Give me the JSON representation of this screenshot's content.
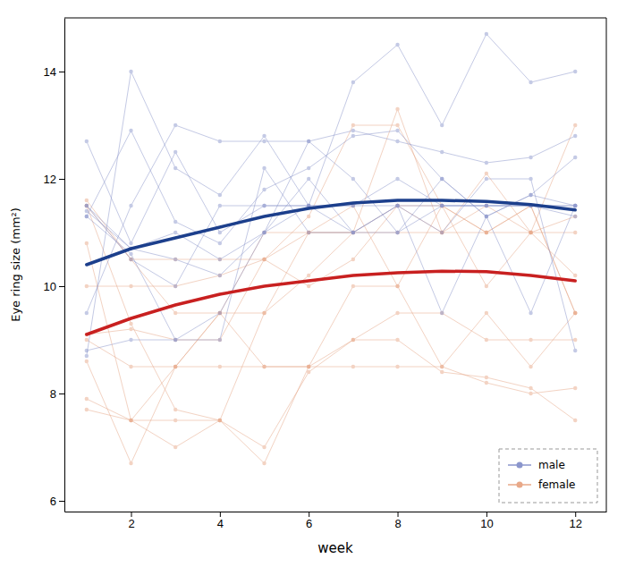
{
  "chart_data": {
    "type": "line",
    "xlabel": "week",
    "ylabel": "Eye ring size (mm²)",
    "x": [
      1,
      2,
      3,
      4,
      5,
      6,
      7,
      8,
      9,
      10,
      11,
      12
    ],
    "xlim": [
      0.5,
      12.7
    ],
    "xticks": [
      2,
      4,
      6,
      8,
      10,
      12
    ],
    "ylim": [
      5.8,
      15.0
    ],
    "yticks": [
      6,
      8,
      10,
      12,
      14
    ],
    "grid": false,
    "legend": "lower right",
    "series": [
      {
        "name": "female",
        "color": "#E8A888",
        "marker": "circle",
        "values": [
          11.6,
          10.5,
          10.5,
          10.5,
          10.5,
          10.0,
          10.5,
          11.5,
          11.0,
          11.0,
          11.0,
          11.3
        ]
      },
      {
        "name": "female",
        "color": "#E8A888",
        "marker": "circle",
        "values": [
          11.5,
          10.5,
          9.5,
          9.5,
          11.0,
          11.0,
          11.5,
          10.0,
          11.5,
          11.0,
          11.5,
          9.5
        ]
      },
      {
        "name": "female",
        "color": "#E8A888",
        "marker": "circle",
        "values": [
          10.8,
          7.5,
          7.0,
          7.5,
          7.0,
          8.4,
          9.0,
          9.0,
          8.4,
          8.3,
          8.1,
          7.5
        ]
      },
      {
        "name": "female",
        "color": "#E8A888",
        "marker": "circle",
        "values": [
          9.0,
          8.5,
          8.5,
          8.5,
          8.5,
          8.5,
          8.5,
          8.5,
          8.5,
          8.2,
          8.0,
          8.1
        ]
      },
      {
        "name": "female",
        "color": "#E8A888",
        "marker": "circle",
        "values": [
          11.5,
          9.3,
          7.7,
          7.5,
          9.5,
          11.0,
          11.0,
          13.3,
          11.0,
          12.1,
          11.0,
          13.0
        ]
      },
      {
        "name": "female",
        "color": "#E8A888",
        "marker": "circle",
        "values": [
          9.1,
          9.2,
          9.0,
          9.0,
          10.5,
          11.3,
          13.0,
          13.0,
          11.5,
          11.0,
          11.5,
          9.5
        ]
      },
      {
        "name": "female",
        "color": "#E8A888",
        "marker": "circle",
        "values": [
          8.6,
          6.7,
          8.5,
          9.5,
          8.5,
          8.5,
          10.0,
          10.0,
          8.5,
          9.5,
          8.5,
          9.5
        ]
      },
      {
        "name": "female",
        "color": "#E8A888",
        "marker": "circle",
        "values": [
          7.9,
          7.5,
          8.5,
          9.5,
          9.5,
          10.2,
          11.0,
          11.0,
          11.0,
          11.5,
          11.0,
          11.0
        ]
      },
      {
        "name": "female",
        "color": "#E8A888",
        "marker": "circle",
        "values": [
          7.7,
          7.5,
          7.5,
          7.5,
          6.7,
          8.5,
          9.0,
          9.5,
          9.5,
          9.0,
          9.0,
          9.0
        ]
      },
      {
        "name": "female",
        "color": "#E8A888",
        "marker": "circle",
        "values": [
          10.0,
          10.0,
          10.0,
          10.2,
          10.5,
          11.0,
          11.0,
          11.5,
          11.5,
          10.0,
          11.0,
          10.2
        ]
      },
      {
        "name": "male",
        "color": "#8B96CC",
        "marker": "circle",
        "values": [
          12.7,
          10.8,
          12.5,
          11.0,
          11.5,
          11.5,
          11.5,
          11.5,
          11.5,
          11.5,
          11.5,
          11.3
        ]
      },
      {
        "name": "male",
        "color": "#8B96CC",
        "marker": "circle",
        "values": [
          11.4,
          10.7,
          11.0,
          10.5,
          11.0,
          12.7,
          12.0,
          11.0,
          12.0,
          11.3,
          11.7,
          11.5
        ]
      },
      {
        "name": "male",
        "color": "#8B96CC",
        "marker": "circle",
        "values": [
          11.3,
          12.9,
          11.2,
          10.8,
          11.8,
          12.2,
          12.8,
          12.9,
          12.0,
          11.3,
          11.7,
          12.4
        ]
      },
      {
        "name": "male",
        "color": "#8B96CC",
        "marker": "circle",
        "values": [
          11.3,
          10.6,
          9.0,
          9.5,
          11.0,
          12.0,
          11.0,
          11.5,
          11.0,
          12.0,
          12.0,
          8.8
        ]
      },
      {
        "name": "male",
        "color": "#8B96CC",
        "marker": "circle",
        "values": [
          8.8,
          9.0,
          9.0,
          9.0,
          12.2,
          11.0,
          11.0,
          11.5,
          9.5,
          11.3,
          9.5,
          11.5
        ]
      },
      {
        "name": "male",
        "color": "#8B96CC",
        "marker": "circle",
        "values": [
          8.7,
          14.0,
          12.2,
          11.7,
          12.8,
          11.5,
          13.8,
          14.5,
          13.0,
          14.7,
          13.8,
          14.0
        ]
      },
      {
        "name": "male",
        "color": "#8B96CC",
        "marker": "circle",
        "values": [
          9.5,
          11.5,
          13.0,
          12.7,
          12.7,
          12.7,
          12.9,
          12.7,
          12.5,
          12.3,
          12.4,
          12.8
        ]
      },
      {
        "name": "male",
        "color": "#8B96CC",
        "marker": "circle",
        "values": [
          11.5,
          10.5,
          10.0,
          11.5,
          11.5,
          11.5,
          11.5,
          12.0,
          11.5,
          11.5,
          11.5,
          11.5
        ]
      },
      {
        "name": "male",
        "color": "#8B96CC",
        "marker": "circle",
        "values": [
          11.5,
          10.7,
          10.5,
          10.2,
          11.0,
          11.5,
          11.0,
          11.0,
          11.5,
          11.5,
          11.5,
          11.5
        ]
      },
      {
        "color": "#C82020",
        "values": [
          9.1,
          9.4,
          9.65,
          9.85,
          10.0,
          10.1,
          10.2,
          10.25,
          10.28,
          10.27,
          10.2,
          10.1
        ]
      },
      {
        "color": "#1C3F8C",
        "values": [
          10.4,
          10.7,
          10.9,
          11.1,
          11.3,
          11.45,
          11.55,
          11.6,
          11.6,
          11.58,
          11.52,
          11.42
        ]
      }
    ]
  }
}
